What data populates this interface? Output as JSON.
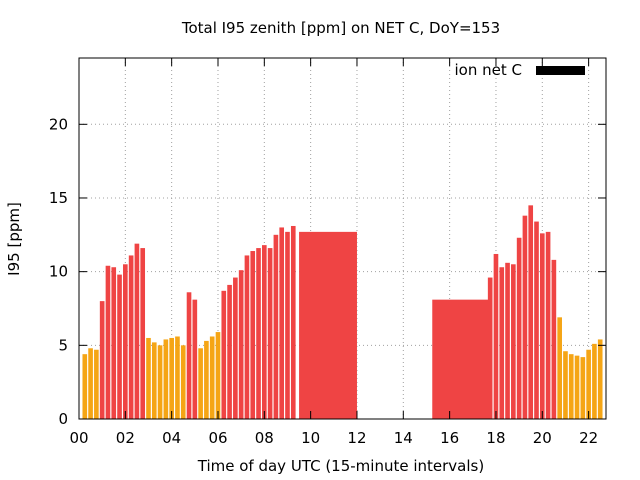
{
  "chart_data": {
    "type": "bar",
    "title": "Total I95 zenith [ppm] on NET C, DoY=153",
    "xlabel": "Time of day UTC (15-minute intervals)",
    "ylabel": "I95 [ppm]",
    "legend": {
      "label": "ion net C",
      "color": "#000000",
      "position": "top-right"
    },
    "xlim": [
      0,
      22.75
    ],
    "ylim": [
      0,
      24.5
    ],
    "x_ticks": [
      "00",
      "02",
      "04",
      "06",
      "08",
      "10",
      "12",
      "14",
      "16",
      "18",
      "20",
      "22"
    ],
    "y_ticks": [
      "0",
      "5",
      "10",
      "15",
      "20"
    ],
    "grid": true,
    "colors": {
      "orange": "#f5a515",
      "red": "#ef4444"
    },
    "bars": [
      {
        "x": 0.25,
        "value": 4.4,
        "color": "orange"
      },
      {
        "x": 0.5,
        "value": 4.8,
        "color": "orange"
      },
      {
        "x": 0.75,
        "value": 4.7,
        "color": "orange"
      },
      {
        "x": 1.0,
        "value": 8.0,
        "color": "red"
      },
      {
        "x": 1.25,
        "value": 10.4,
        "color": "red"
      },
      {
        "x": 1.5,
        "value": 10.3,
        "color": "red"
      },
      {
        "x": 1.75,
        "value": 9.8,
        "color": "red"
      },
      {
        "x": 2.0,
        "value": 10.5,
        "color": "red"
      },
      {
        "x": 2.25,
        "value": 11.1,
        "color": "red"
      },
      {
        "x": 2.5,
        "value": 11.9,
        "color": "red"
      },
      {
        "x": 2.75,
        "value": 11.6,
        "color": "red"
      },
      {
        "x": 3.0,
        "value": 5.5,
        "color": "orange"
      },
      {
        "x": 3.25,
        "value": 5.2,
        "color": "orange"
      },
      {
        "x": 3.5,
        "value": 5.0,
        "color": "orange"
      },
      {
        "x": 3.75,
        "value": 5.4,
        "color": "orange"
      },
      {
        "x": 4.0,
        "value": 5.5,
        "color": "orange"
      },
      {
        "x": 4.25,
        "value": 5.6,
        "color": "orange"
      },
      {
        "x": 4.5,
        "value": 5.0,
        "color": "orange"
      },
      {
        "x": 4.75,
        "value": 8.6,
        "color": "red"
      },
      {
        "x": 5.0,
        "value": 8.1,
        "color": "red"
      },
      {
        "x": 5.25,
        "value": 4.8,
        "color": "orange"
      },
      {
        "x": 5.5,
        "value": 5.3,
        "color": "orange"
      },
      {
        "x": 5.75,
        "value": 5.6,
        "color": "orange"
      },
      {
        "x": 6.0,
        "value": 5.9,
        "color": "orange"
      },
      {
        "x": 6.25,
        "value": 8.7,
        "color": "red"
      },
      {
        "x": 6.5,
        "value": 9.1,
        "color": "red"
      },
      {
        "x": 6.75,
        "value": 9.6,
        "color": "red"
      },
      {
        "x": 7.0,
        "value": 10.1,
        "color": "red"
      },
      {
        "x": 7.25,
        "value": 11.1,
        "color": "red"
      },
      {
        "x": 7.5,
        "value": 11.4,
        "color": "red"
      },
      {
        "x": 7.75,
        "value": 11.6,
        "color": "red"
      },
      {
        "x": 8.0,
        "value": 11.8,
        "color": "red"
      },
      {
        "x": 8.25,
        "value": 11.6,
        "color": "red"
      },
      {
        "x": 8.5,
        "value": 12.5,
        "color": "red"
      },
      {
        "x": 8.75,
        "value": 13.0,
        "color": "red"
      },
      {
        "x": 9.0,
        "value": 12.7,
        "color": "red"
      },
      {
        "x": 9.25,
        "value": 13.1,
        "color": "red"
      },
      {
        "x": 9.5,
        "value": 12.7,
        "color": "red",
        "span": 2.5
      },
      {
        "x": 15.25,
        "value": 8.1,
        "color": "red",
        "span": 2.5
      },
      {
        "x": 17.75,
        "value": 9.6,
        "color": "red"
      },
      {
        "x": 18.0,
        "value": 11.2,
        "color": "red"
      },
      {
        "x": 18.25,
        "value": 10.3,
        "color": "red"
      },
      {
        "x": 18.5,
        "value": 10.6,
        "color": "red"
      },
      {
        "x": 18.75,
        "value": 10.5,
        "color": "red"
      },
      {
        "x": 19.0,
        "value": 12.3,
        "color": "red"
      },
      {
        "x": 19.25,
        "value": 13.8,
        "color": "red"
      },
      {
        "x": 19.5,
        "value": 14.5,
        "color": "red"
      },
      {
        "x": 19.75,
        "value": 13.4,
        "color": "red"
      },
      {
        "x": 20.0,
        "value": 12.6,
        "color": "red"
      },
      {
        "x": 20.25,
        "value": 12.7,
        "color": "red"
      },
      {
        "x": 20.5,
        "value": 10.8,
        "color": "red"
      },
      {
        "x": 20.75,
        "value": 6.9,
        "color": "orange"
      },
      {
        "x": 21.0,
        "value": 4.6,
        "color": "orange"
      },
      {
        "x": 21.25,
        "value": 4.4,
        "color": "orange"
      },
      {
        "x": 21.5,
        "value": 4.3,
        "color": "orange"
      },
      {
        "x": 21.75,
        "value": 4.2,
        "color": "orange"
      },
      {
        "x": 22.0,
        "value": 4.7,
        "color": "orange"
      },
      {
        "x": 22.25,
        "value": 5.1,
        "color": "orange"
      },
      {
        "x": 22.5,
        "value": 5.4,
        "color": "orange"
      }
    ]
  }
}
